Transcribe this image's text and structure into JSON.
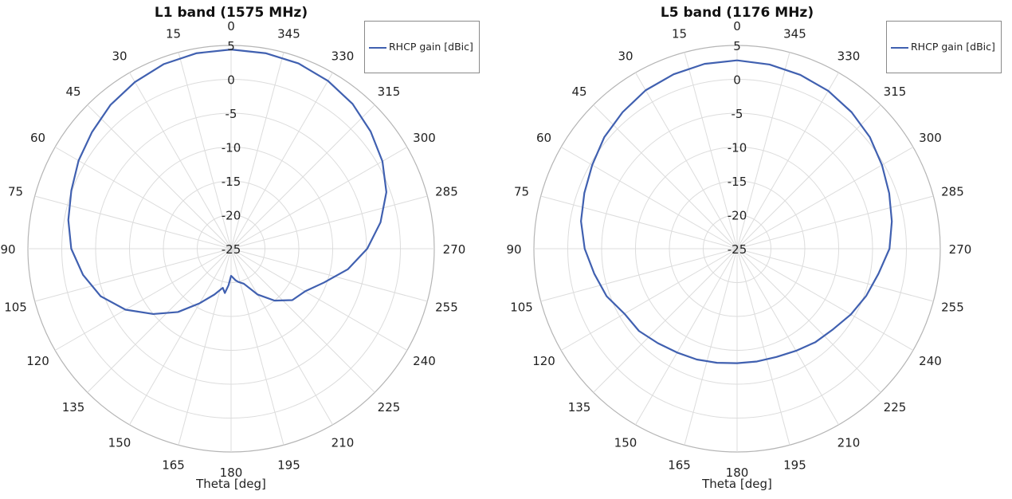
{
  "chart_data": [
    {
      "type": "polar-line",
      "title": "L1 band (1575 MHz)",
      "xlabel": "Theta [deg]",
      "angle_ticks": [
        0,
        15,
        30,
        45,
        60,
        75,
        90,
        105,
        120,
        135,
        150,
        165,
        180,
        195,
        210,
        225,
        240,
        255,
        270,
        285,
        300,
        315,
        330,
        345
      ],
      "radial_ticks": [
        5,
        0,
        -5,
        -10,
        -15,
        -20,
        -25
      ],
      "radial_range": [
        -25,
        5
      ],
      "angle_direction": "counterclockwise",
      "zero_location": "top",
      "grid": true,
      "legend_position": "top-right",
      "series": [
        {
          "name": "RHCP gain [dBic]",
          "color": "#4060b0",
          "theta": [
            0,
            10,
            20,
            30,
            40,
            50,
            60,
            70,
            80,
            90,
            100,
            110,
            120,
            130,
            140,
            150,
            160,
            168,
            172,
            176,
            180,
            184,
            188,
            192,
            200,
            210,
            220,
            230,
            240,
            250,
            260,
            270,
            280,
            290,
            300,
            310,
            320,
            330,
            340,
            350,
            360
          ],
          "values": [
            4.4,
            4.3,
            4.0,
            3.4,
            2.7,
            1.8,
            1.0,
            0.1,
            -0.6,
            -1.4,
            -2.8,
            -4.5,
            -7.0,
            -10.0,
            -12.8,
            -15.7,
            -17.8,
            -19.1,
            -18.4,
            -19.6,
            -21.0,
            -20.7,
            -20.3,
            -20.0,
            -19.5,
            -17.2,
            -15.0,
            -13.2,
            -12.4,
            -10.4,
            -7.5,
            -4.9,
            -2.6,
            -0.6,
            0.8,
            1.9,
            2.9,
            3.6,
            4.1,
            4.3,
            4.4
          ]
        }
      ]
    },
    {
      "type": "polar-line",
      "title": "L5 band (1176 MHz)",
      "xlabel": "Theta [deg]",
      "angle_ticks": [
        0,
        15,
        30,
        45,
        60,
        75,
        90,
        105,
        120,
        135,
        150,
        165,
        180,
        195,
        210,
        225,
        240,
        255,
        270,
        285,
        300,
        315,
        330,
        345
      ],
      "radial_ticks": [
        5,
        0,
        -5,
        -10,
        -15,
        -20,
        -25
      ],
      "radial_range": [
        -25,
        5
      ],
      "angle_direction": "counterclockwise",
      "zero_location": "top",
      "grid": true,
      "legend_position": "top-right",
      "series": [
        {
          "name": "RHCP gain [dBic]",
          "color": "#4060b0",
          "theta": [
            0,
            10,
            20,
            30,
            40,
            50,
            60,
            70,
            80,
            90,
            100,
            110,
            120,
            130,
            140,
            150,
            160,
            170,
            180,
            190,
            200,
            210,
            220,
            230,
            240,
            250,
            260,
            270,
            280,
            290,
            300,
            310,
            320,
            330,
            340,
            350,
            360
          ],
          "values": [
            2.8,
            2.7,
            2.4,
            2.0,
            1.3,
            0.6,
            -0.3,
            -1.0,
            -1.6,
            -2.5,
            -3.6,
            -4.5,
            -5.8,
            -6.1,
            -6.8,
            -7.3,
            -7.6,
            -7.9,
            -8.1,
            -8.1,
            -8.0,
            -7.6,
            -7.0,
            -6.5,
            -5.6,
            -4.7,
            -3.8,
            -2.5,
            -1.8,
            -1.1,
            -0.3,
            0.6,
            1.3,
            1.9,
            2.3,
            2.6,
            2.8
          ]
        }
      ]
    }
  ]
}
